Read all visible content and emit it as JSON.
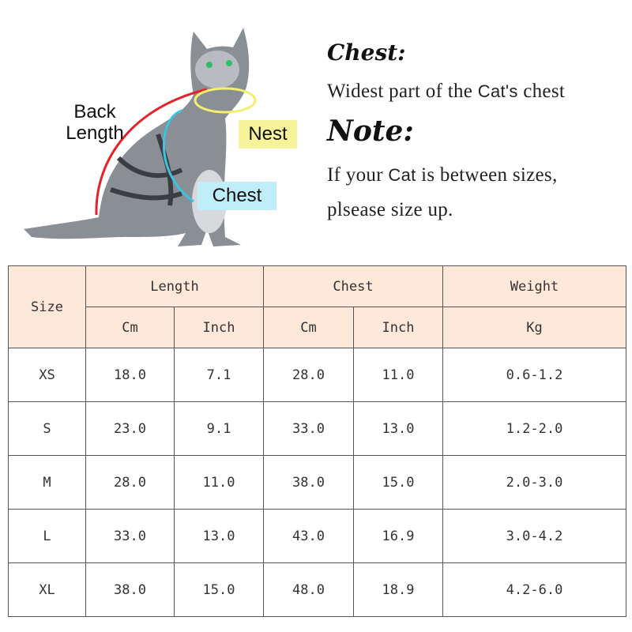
{
  "diagram": {
    "back_length_label_line1": "Back",
    "back_length_label_line2": "Length",
    "nest_label": "Nest",
    "chest_label": "Chest",
    "colors": {
      "back_length": "#e8202a",
      "nest": "#f5ef6e",
      "chest": "#3cc3e0",
      "nest_bg": "#f7f39a",
      "chest_bg": "#bfeefa"
    }
  },
  "info": {
    "chest_heading": "Chest:",
    "chest_text_a": "Widest part of the ",
    "chest_text_cat": "Cat's",
    "chest_text_b": " chest",
    "note_heading": "Note:",
    "note_text_a": "If your ",
    "note_text_cat": "Cat",
    "note_text_b": " is between sizes,",
    "note_text_line2": "plsease size up."
  },
  "table": {
    "size_header": "Size",
    "groups": [
      "Length",
      "Chest",
      "Weight"
    ],
    "units": [
      "Cm",
      "Inch",
      "Cm",
      "Inch",
      "Kg"
    ],
    "rows": [
      [
        "XS",
        "18.0",
        "7.1",
        "28.0",
        "11.0",
        "0.6-1.2"
      ],
      [
        "S",
        "23.0",
        "9.1",
        "33.0",
        "13.0",
        "1.2-2.0"
      ],
      [
        "M",
        "28.0",
        "11.0",
        "38.0",
        "15.0",
        "2.0-3.0"
      ],
      [
        "L",
        "33.0",
        "13.0",
        "43.0",
        "16.9",
        "3.0-4.2"
      ],
      [
        "XL",
        "38.0",
        "15.0",
        "48.0",
        "18.9",
        "4.2-6.0"
      ]
    ],
    "header_bg": "#fde8da"
  }
}
